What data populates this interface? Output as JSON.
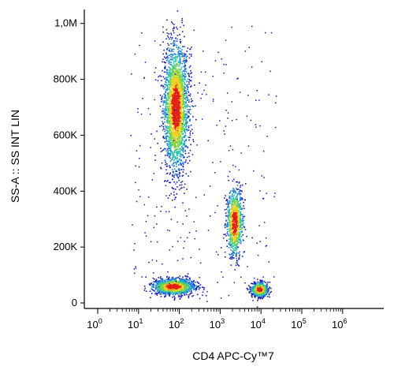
{
  "chart_data": {
    "type": "scatter",
    "title": "",
    "xlabel": "CD4 APC-Cy™7",
    "ylabel": "SS-A :: SS INT LIN",
    "x_scale": "log",
    "xlim": [
      1,
      1000000
    ],
    "ylim": [
      0,
      1050000
    ],
    "grid": false,
    "x_ticks": [
      {
        "value": 1,
        "base": "10",
        "exp": "0"
      },
      {
        "value": 10,
        "base": "10",
        "exp": "1"
      },
      {
        "value": 100,
        "base": "10",
        "exp": "2"
      },
      {
        "value": 1000,
        "base": "10",
        "exp": "3"
      },
      {
        "value": 10000,
        "base": "10",
        "exp": "4"
      },
      {
        "value": 100000,
        "base": "10",
        "exp": "5"
      },
      {
        "value": 1000000,
        "base": "10",
        "exp": "6"
      }
    ],
    "y_ticks": [
      {
        "value": 0,
        "label": "0"
      },
      {
        "value": 200000,
        "label": "200K"
      },
      {
        "value": 400000,
        "label": "400K"
      },
      {
        "value": 600000,
        "label": "600K"
      },
      {
        "value": 800000,
        "label": "800K"
      },
      {
        "value": 1000000,
        "label": "1,0M"
      }
    ],
    "populations": [
      {
        "x_center": 80,
        "y_center": 700000,
        "x_spread_decades": 0.15,
        "y_spread": 110000,
        "points": 2600
      },
      {
        "x_center": 2200,
        "y_center": 290000,
        "x_spread_decades": 0.1,
        "y_spread": 60000,
        "points": 900
      },
      {
        "x_center": 70,
        "y_center": 60000,
        "x_spread_decades": 0.25,
        "y_spread": 14000,
        "points": 1300
      },
      {
        "x_center": 9000,
        "y_center": 50000,
        "x_spread_decades": 0.1,
        "y_spread": 13000,
        "points": 650
      }
    ],
    "colors": {
      "low": "#1a1aa8",
      "mid_low": "#1e7fd6",
      "mid": "#2cc4a8",
      "mid_high": "#7fd23c",
      "high": "#f0d020",
      "peak": "#e02010"
    }
  }
}
